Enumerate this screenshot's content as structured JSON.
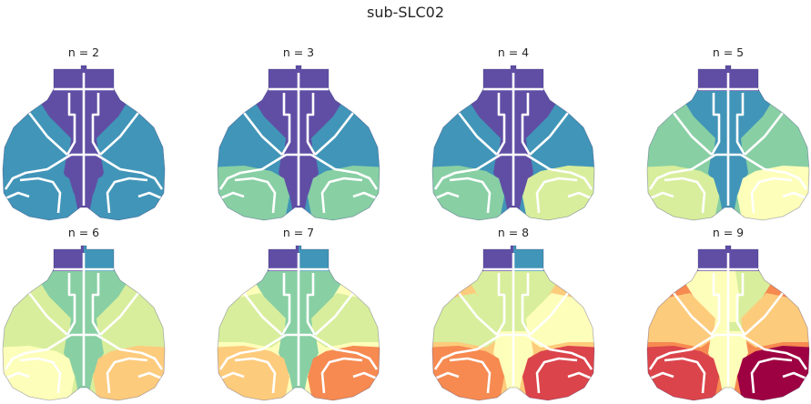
{
  "figure": {
    "title": "sub-SLC02"
  },
  "palette_spectral_dark_to_light": [
    "#604ea5",
    "#4195b8",
    "#88cfa4",
    "#d8ee9c",
    "#fdfeba",
    "#fdcb7c",
    "#f68a51",
    "#db444b",
    "#9e0142"
  ],
  "boundary_color": "#ffffff",
  "panels": [
    {
      "label": "n = 2",
      "n": 2,
      "regions": {
        "olfactory_left": "#604ea5",
        "olfactory_right": "#604ea5",
        "frontal_left": "#604ea5",
        "frontal_right": "#604ea5",
        "frontal_mid": "#604ea5",
        "lateral_left": "#4195b8",
        "lateral_right": "#4195b8",
        "motor_left": "#4195b8",
        "motor_right": "#4195b8",
        "center": "#604ea5",
        "posterior_left": "#4195b8",
        "posterior_right": "#4195b8"
      }
    },
    {
      "label": "n = 3",
      "n": 3,
      "regions": {
        "olfactory_left": "#604ea5",
        "olfactory_right": "#604ea5",
        "frontal_left": "#604ea5",
        "frontal_right": "#604ea5",
        "frontal_mid": "#604ea5",
        "lateral_left": "#4195b8",
        "lateral_right": "#4195b8",
        "motor_left": "#4195b8",
        "motor_right": "#4195b8",
        "center": "#604ea5",
        "posterior_left": "#88cfa4",
        "posterior_right": "#88cfa4"
      }
    },
    {
      "label": "n = 4",
      "n": 4,
      "regions": {
        "olfactory_left": "#604ea5",
        "olfactory_right": "#604ea5",
        "frontal_left": "#604ea5",
        "frontal_right": "#604ea5",
        "frontal_mid": "#604ea5",
        "lateral_left": "#4195b8",
        "lateral_right": "#4195b8",
        "motor_left": "#4195b8",
        "motor_right": "#4195b8",
        "center": "#604ea5",
        "posterior_left": "#88cfa4",
        "posterior_right": "#d8ee9c"
      }
    },
    {
      "label": "n = 5",
      "n": 5,
      "regions": {
        "olfactory_left": "#604ea5",
        "olfactory_right": "#604ea5",
        "frontal_left": "#4195b8",
        "frontal_right": "#4195b8",
        "frontal_mid": "#4195b8",
        "lateral_left": "#88cfa4",
        "lateral_right": "#88cfa4",
        "motor_left": "#88cfa4",
        "motor_right": "#88cfa4",
        "center": "#4195b8",
        "posterior_left": "#d8ee9c",
        "posterior_right": "#fdfeba"
      }
    },
    {
      "label": "n = 6",
      "n": 6,
      "regions": {
        "olfactory_left": "#604ea5",
        "olfactory_right": "#4195b8",
        "frontal_left": "#88cfa4",
        "frontal_right": "#88cfa4",
        "frontal_mid": "#88cfa4",
        "lateral_left": "#d8ee9c",
        "lateral_right": "#d8ee9c",
        "motor_left": "#d8ee9c",
        "motor_right": "#d8ee9c",
        "center": "#88cfa4",
        "posterior_left": "#fdfeba",
        "posterior_right": "#fdcb7c"
      }
    },
    {
      "label": "n = 7",
      "n": 7,
      "regions": {
        "olfactory_left": "#604ea5",
        "olfactory_right": "#4195b8",
        "frontal_left": "#88cfa4",
        "frontal_right": "#88cfa4",
        "frontal_mid": "#88cfa4",
        "lateral_left": "#fdfeba",
        "lateral_right": "#fdfeba",
        "motor_left": "#d8ee9c",
        "motor_right": "#d8ee9c",
        "center": "#88cfa4",
        "posterior_left": "#fdcb7c",
        "posterior_right": "#f68a51"
      }
    },
    {
      "label": "n = 8",
      "n": 8,
      "regions": {
        "olfactory_left": "#604ea5",
        "olfactory_right": "#4195b8",
        "frontal_left": "#d8ee9c",
        "frontal_right": "#d8ee9c",
        "frontal_mid": "#d8ee9c",
        "lateral_left": "#fdcb7c",
        "lateral_right": "#fdcb7c",
        "motor_left": "#d8ee9c",
        "motor_right": "#fdfeba",
        "center": "#fdfeba",
        "posterior_left": "#f68a51",
        "posterior_right": "#db444b"
      }
    },
    {
      "label": "n = 9",
      "n": 9,
      "regions": {
        "olfactory_left": "#604ea5",
        "olfactory_right": "#604ea5",
        "frontal_left": "#fdfeba",
        "frontal_right": "#d8ee9c",
        "frontal_mid": "#fdfeba",
        "lateral_left": "#f68a51",
        "lateral_right": "#f68a51",
        "motor_left": "#fdcb7c",
        "motor_right": "#fdcb7c",
        "center": "#fdfeba",
        "posterior_left": "#db444b",
        "posterior_right": "#9e0142"
      }
    }
  ]
}
